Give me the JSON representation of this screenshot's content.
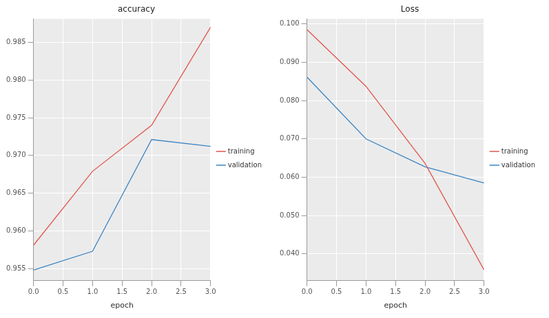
{
  "chart_data": [
    {
      "type": "line",
      "title": "accuracy",
      "x_label": "epoch",
      "x": [
        0,
        1,
        2,
        3
      ],
      "xlim": [
        0,
        3
      ],
      "xticks": [
        {
          "value": 0,
          "label": "0.0"
        },
        {
          "value": 0.5,
          "label": "0.5"
        },
        {
          "value": 1,
          "label": "1.0"
        },
        {
          "value": 1.5,
          "label": "1.5"
        },
        {
          "value": 2,
          "label": "2.0"
        },
        {
          "value": 2.5,
          "label": "2.5"
        },
        {
          "value": 3,
          "label": "3.0"
        }
      ],
      "ylim": [
        0.9534,
        0.9881
      ],
      "yticks": [
        0.955,
        {
          "value": 0.96,
          "label": "0.960"
        },
        0.965,
        {
          "value": 0.97,
          "label": "0.970"
        },
        0.975,
        {
          "value": 0.98,
          "label": "0.980"
        },
        0.985
      ],
      "series": [
        {
          "name": "training",
          "color": "#e0554c",
          "values": [
            0.9581,
            0.9679,
            0.974,
            0.987
          ]
        },
        {
          "name": "validation",
          "color": "#3a84c4",
          "values": [
            0.9548,
            0.9573,
            0.9721,
            0.9712
          ]
        }
      ],
      "grid": true,
      "legend": "right"
    },
    {
      "type": "line",
      "title": "Loss",
      "x_label": "epoch",
      "x": [
        0,
        1,
        2,
        3
      ],
      "xlim": [
        0,
        3
      ],
      "xticks": [
        {
          "value": 0,
          "label": "0.0"
        },
        {
          "value": 0.5,
          "label": "0.5"
        },
        {
          "value": 1,
          "label": "1.0"
        },
        {
          "value": 1.5,
          "label": "1.5"
        },
        {
          "value": 2,
          "label": "2.0"
        },
        {
          "value": 2.5,
          "label": "2.5"
        },
        {
          "value": 3,
          "label": "3.0"
        }
      ],
      "ylim": [
        0.033,
        0.1013
      ],
      "yticks": [
        {
          "value": 0.04,
          "label": "0.040"
        },
        {
          "value": 0.05,
          "label": "0.050"
        },
        {
          "value": 0.06,
          "label": "0.060"
        },
        {
          "value": 0.07,
          "label": "0.070"
        },
        {
          "value": 0.08,
          "label": "0.080"
        },
        {
          "value": 0.09,
          "label": "0.090"
        },
        {
          "value": 0.1,
          "label": "0.100"
        }
      ],
      "series": [
        {
          "name": "training",
          "color": "#e0554c",
          "values": [
            0.0985,
            0.0837,
            0.0636,
            0.0358
          ]
        },
        {
          "name": "validation",
          "color": "#3a84c4",
          "values": [
            0.0861,
            0.07,
            0.0627,
            0.0585
          ]
        }
      ],
      "grid": true,
      "legend": "right"
    }
  ]
}
